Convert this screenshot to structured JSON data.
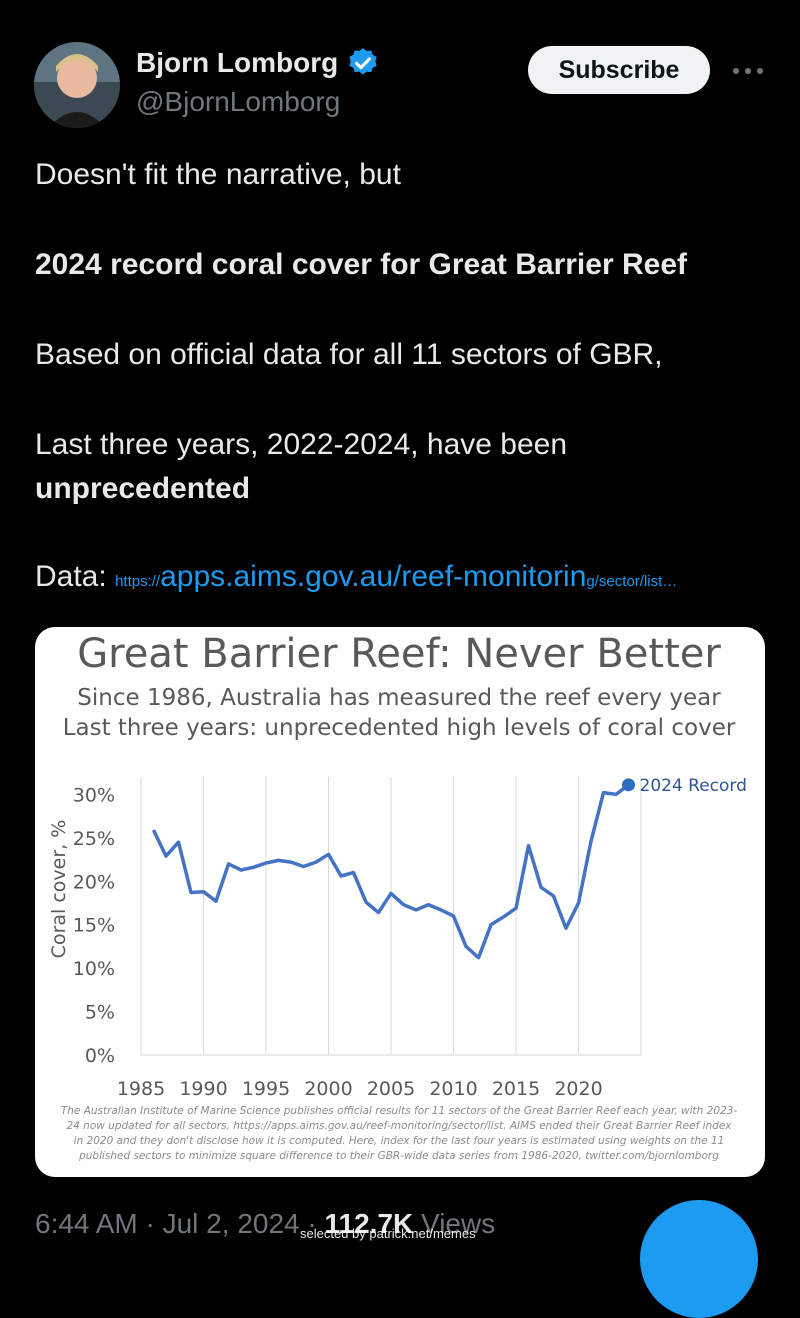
{
  "author": {
    "name": "Bjorn Lomborg",
    "handle": "@BjornLomborg",
    "verified_color": "#1d9bf0"
  },
  "actions": {
    "subscribe_label": "Subscribe"
  },
  "tweet": {
    "line1": "Doesn't fit the narrative, but",
    "headline": "2024 record coral cover for Great Barrier Reef",
    "line3": "Based on official data for all 11 sectors of GBR,",
    "line4": "Last three years, 2022-2024, have been",
    "line5": "unprecedented",
    "data_label": "Data:",
    "link_prefix": "https://",
    "link_main": "apps.aims.gov.au/reef-monitorin",
    "link_suffix": "g/sector/list…"
  },
  "chart_card": {
    "title": "Great Barrier Reef: Never Better",
    "subtitle1": "Since 1986, Australia has measured the reef every year",
    "subtitle2": "Last three years: unprecedented high levels of coral cover",
    "footnote1": "The Australian Institute of Marine Science publishes official results for 11 sectors of the Great Barrier Reef each year, with 2023-",
    "footnote2": "24 now updated for all sectors, https://apps.aims.gov.au/reef-monitoring/sector/list. AIMS ended their Great Barrier Reef index",
    "footnote3": "in 2020 and they don't disclose how it is computed. Here, index for the last four years is estimated using weights on the 11",
    "footnote4": "published sectors to minimize square difference to their GBR-wide data series from 1986-2020, twitter.com/bjornlomborg"
  },
  "chart_data": {
    "type": "line",
    "ylabel": "Coral cover, %",
    "xlabel": "",
    "xlim": [
      1985,
      2025
    ],
    "ylim": [
      0,
      32
    ],
    "y_ticks": [
      0,
      5,
      10,
      15,
      20,
      25,
      30
    ],
    "y_tick_labels": [
      "0%",
      "5%",
      "10%",
      "15%",
      "20%",
      "25%",
      "30%"
    ],
    "x_ticks": [
      1985,
      1990,
      1995,
      2000,
      2005,
      2010,
      2015,
      2020
    ],
    "x_tick_labels": [
      "1985",
      "1990",
      "1995",
      "2000",
      "2005",
      "2010",
      "2015",
      "2020"
    ],
    "grid": "vertical",
    "color": "#4472c4",
    "series": [
      {
        "x": [
          1986,
          1987,
          1988,
          1989,
          1990,
          1991,
          1992,
          1993,
          1994,
          1995,
          1996,
          1997,
          1998,
          1999,
          2000,
          2001,
          2002,
          2003,
          2004,
          2005,
          2006,
          2007,
          2008,
          2009,
          2010,
          2011,
          2012,
          2013,
          2014,
          2015,
          2016,
          2017,
          2018,
          2019,
          2020,
          2021,
          2022,
          2023,
          2024
        ],
        "y": [
          25.9,
          22.9,
          24.5,
          18.7,
          18.8,
          17.7,
          22.0,
          21.3,
          21.6,
          22.1,
          22.4,
          22.2,
          21.7,
          22.2,
          23.1,
          20.6,
          21.0,
          17.6,
          16.4,
          18.6,
          17.3,
          16.7,
          17.3,
          16.7,
          16.0,
          12.5,
          11.2,
          15.0,
          15.9,
          16.9,
          24.1,
          19.3,
          18.3,
          14.6,
          17.5,
          24.6,
          30.2,
          30.0,
          31.1
        ]
      }
    ],
    "annotation": "2024 Record"
  },
  "footer": {
    "timestamp": "6:44 AM · Jul 2, 2024 · ",
    "views_count": "112.7K",
    "views_label": " Views",
    "watermark": "selected by patrick.net/memes"
  }
}
